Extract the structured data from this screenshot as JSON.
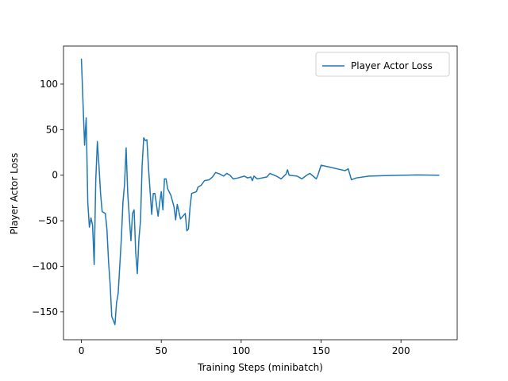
{
  "chart_data": {
    "type": "line",
    "x_label": "Training Steps (minibatch)",
    "y_label": "Player Actor Loss",
    "x": [
      0,
      1,
      2,
      3,
      4,
      5,
      6,
      7,
      8,
      9,
      10,
      11,
      12,
      13,
      15,
      16,
      17,
      18,
      19,
      21,
      22,
      23,
      25,
      26,
      27,
      28,
      29,
      31,
      32,
      33,
      34,
      35,
      36,
      37,
      38,
      39,
      40,
      41,
      42,
      44,
      45,
      46,
      48,
      49,
      50,
      51,
      52,
      53,
      54,
      56,
      58,
      59,
      60,
      62,
      65,
      66,
      67,
      68,
      69,
      72,
      73,
      75,
      77,
      80,
      82,
      84,
      87,
      89,
      91,
      93,
      95,
      98,
      102,
      104,
      106,
      107,
      108,
      110,
      113,
      116,
      118,
      122,
      125,
      128,
      129,
      130,
      135,
      138,
      141,
      143,
      145,
      147,
      148,
      150,
      155,
      160,
      165,
      167,
      169,
      172,
      180,
      190,
      200,
      210,
      224
    ],
    "series": [
      {
        "name": "Player Actor Loss",
        "color": "#1f77b4",
        "values": [
          128,
          80,
          33,
          63,
          -30,
          -57,
          -47,
          -55,
          -98,
          -5,
          37,
          10,
          -20,
          -40,
          -42,
          -60,
          -95,
          -120,
          -155,
          -164,
          -140,
          -130,
          -70,
          -30,
          -10,
          30,
          -20,
          -72,
          -42,
          -38,
          -85,
          -108,
          -70,
          -50,
          10,
          41,
          38,
          39,
          8,
          -43,
          -20,
          -20,
          -45,
          -30,
          -18,
          -38,
          -4,
          -4,
          -15,
          -22,
          -35,
          -49,
          -32,
          -48,
          -42,
          -61,
          -59,
          -35,
          -20,
          -18,
          -13,
          -11,
          -6,
          -5,
          -2,
          3,
          1,
          -1,
          2,
          0,
          -4,
          -3,
          -1,
          -3,
          -2,
          -6,
          -1,
          -4,
          -3,
          -2,
          2,
          -1,
          -4,
          1,
          6,
          0,
          -1,
          -4,
          0,
          2,
          -1,
          -4,
          0,
          11,
          9,
          7,
          5,
          7,
          -5,
          -3,
          -1,
          -0.5,
          0,
          0.3,
          0
        ]
      }
    ],
    "xlim": [
      -11.2,
      235.2
    ],
    "ylim": [
      -180.6,
      141.8
    ],
    "xticks": [
      0,
      50,
      100,
      150,
      200
    ],
    "yticks": [
      {
        "value": -150,
        "label": "−150"
      },
      {
        "value": -100,
        "label": "−100"
      },
      {
        "value": -50,
        "label": "−50"
      },
      0,
      50,
      100
    ],
    "legend": "upper right"
  }
}
